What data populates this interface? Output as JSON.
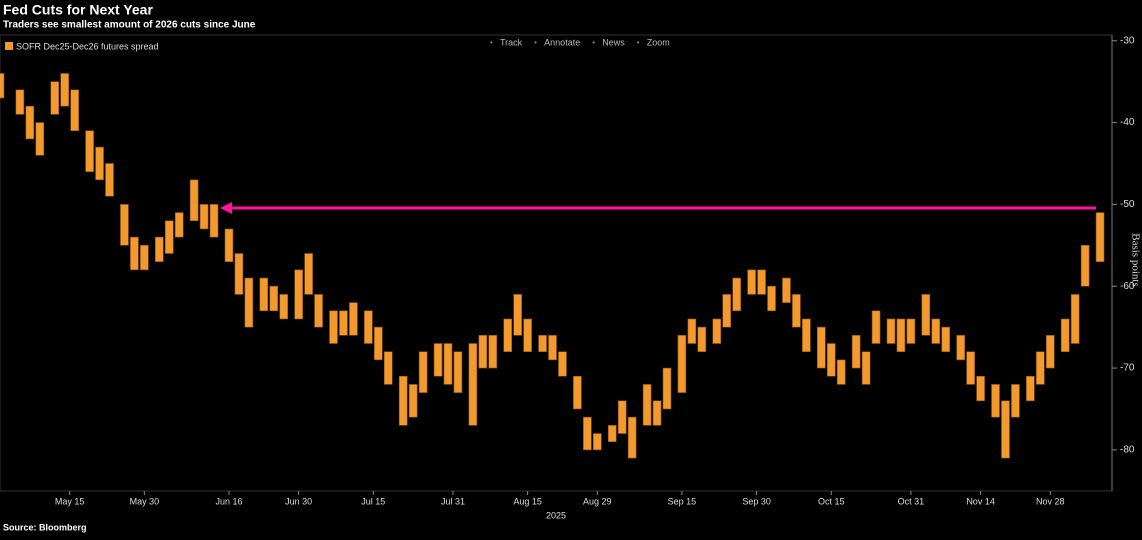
{
  "chart_data": {
    "type": "candlestick",
    "title": "Fed Cuts for Next Year",
    "subtitle": "Traders see smallest amount of 2026 cuts since June",
    "toolbar": [
      "Track",
      "Annotate",
      "News",
      "Zoom"
    ],
    "y_label": "Basis points",
    "x_label": "2025",
    "source": "Source: Bloomberg",
    "x": [
      "2025-05-01",
      "2025-05-05",
      "2025-05-07",
      "2025-05-09",
      "2025-05-12",
      "2025-05-14",
      "2025-05-16",
      "2025-05-19",
      "2025-05-21",
      "2025-05-23",
      "2025-05-26",
      "2025-05-28",
      "2025-05-30",
      "2025-06-02",
      "2025-06-04",
      "2025-06-06",
      "2025-06-09",
      "2025-06-11",
      "2025-06-13",
      "2025-06-16",
      "2025-06-18",
      "2025-06-20",
      "2025-06-23",
      "2025-06-25",
      "2025-06-27",
      "2025-06-30",
      "2025-07-02",
      "2025-07-04",
      "2025-07-07",
      "2025-07-09",
      "2025-07-11",
      "2025-07-14",
      "2025-07-16",
      "2025-07-18",
      "2025-07-21",
      "2025-07-23",
      "2025-07-25",
      "2025-07-28",
      "2025-07-30",
      "2025-08-01",
      "2025-08-04",
      "2025-08-06",
      "2025-08-08",
      "2025-08-11",
      "2025-08-13",
      "2025-08-15",
      "2025-08-18",
      "2025-08-20",
      "2025-08-22",
      "2025-08-25",
      "2025-08-27",
      "2025-08-29",
      "2025-09-01",
      "2025-09-03",
      "2025-09-05",
      "2025-09-08",
      "2025-09-10",
      "2025-09-12",
      "2025-09-15",
      "2025-09-17",
      "2025-09-19",
      "2025-09-22",
      "2025-09-24",
      "2025-09-26",
      "2025-09-29",
      "2025-10-01",
      "2025-10-03",
      "2025-10-06",
      "2025-10-08",
      "2025-10-10",
      "2025-10-13",
      "2025-10-15",
      "2025-10-17",
      "2025-10-20",
      "2025-10-22",
      "2025-10-24",
      "2025-10-27",
      "2025-10-29",
      "2025-10-31",
      "2025-11-03",
      "2025-11-05",
      "2025-11-07",
      "2025-11-10",
      "2025-11-12",
      "2025-11-14",
      "2025-11-17",
      "2025-11-19",
      "2025-11-21",
      "2025-11-24",
      "2025-11-26",
      "2025-11-28",
      "2025-12-01",
      "2025-12-03",
      "2025-12-05",
      "2025-12-08"
    ],
    "series": [
      {
        "name": "SOFR Dec25-Dec26 futures spread",
        "color": "#f39a2e",
        "open": [
          -34,
          -36,
          -38,
          -40,
          -35,
          -34,
          -36,
          -41,
          -43,
          -45,
          -50,
          -54,
          -55,
          -54,
          -52,
          -51,
          -47,
          -50,
          -50,
          -53,
          -56,
          -59,
          -59,
          -60,
          -61,
          -58,
          -56,
          -61,
          -63,
          -63,
          -62,
          -63,
          -65,
          -68,
          -71,
          -72,
          -68,
          -67,
          -67,
          -68,
          -67,
          -66,
          -66,
          -64,
          -61,
          -64,
          -66,
          -66,
          -68,
          -71,
          -76,
          -78,
          -77,
          -74,
          -76,
          -72,
          -74,
          -70,
          -66,
          -64,
          -65,
          -64,
          -61,
          -59,
          -58,
          -58,
          -60,
          -59,
          -61,
          -64,
          -65,
          -67,
          -69,
          -66,
          -68,
          -63,
          -64,
          -64,
          -64,
          -61,
          -64,
          -65,
          -66,
          -68,
          -71,
          -72,
          -74,
          -72,
          -71,
          -68,
          -66,
          -64,
          -61,
          -55,
          -51
        ],
        "close": [
          -37,
          -39,
          -42,
          -44,
          -39,
          -38,
          -41,
          -46,
          -47,
          -49,
          -55,
          -58,
          -58,
          -57,
          -56,
          -54,
          -52,
          -53,
          -54,
          -57,
          -61,
          -65,
          -63,
          -63,
          -64,
          -64,
          -61,
          -65,
          -67,
          -66,
          -66,
          -67,
          -69,
          -72,
          -77,
          -76,
          -73,
          -71,
          -72,
          -73,
          -77,
          -70,
          -70,
          -68,
          -66,
          -68,
          -68,
          -69,
          -71,
          -75,
          -80,
          -80,
          -79,
          -78,
          -81,
          -77,
          -77,
          -75,
          -73,
          -67,
          -68,
          -67,
          -65,
          -63,
          -61,
          -61,
          -63,
          -62,
          -65,
          -68,
          -70,
          -71,
          -72,
          -70,
          -72,
          -67,
          -67,
          -68,
          -67,
          -66,
          -67,
          -68,
          -69,
          -72,
          -74,
          -76,
          -81,
          -76,
          -74,
          -72,
          -70,
          -68,
          -67,
          -60,
          -57
        ]
      }
    ],
    "xlim": [
      "2025-05-01",
      "2025-12-10"
    ],
    "xticks": [
      {
        "value": "2025-05-15",
        "label": "May 15"
      },
      {
        "value": "2025-05-30",
        "label": "May 30"
      },
      {
        "value": "2025-06-16",
        "label": "Jun 16"
      },
      {
        "value": "2025-06-30",
        "label": "Jun 30"
      },
      {
        "value": "2025-07-15",
        "label": "Jul 15"
      },
      {
        "value": "2025-07-31",
        "label": "Jul 31"
      },
      {
        "value": "2025-08-15",
        "label": "Aug 15"
      },
      {
        "value": "2025-08-29",
        "label": "Aug 29"
      },
      {
        "value": "2025-09-15",
        "label": "Sep 15"
      },
      {
        "value": "2025-09-30",
        "label": "Sep 30"
      },
      {
        "value": "2025-10-15",
        "label": "Oct 15"
      },
      {
        "value": "2025-10-31",
        "label": "Oct 31"
      },
      {
        "value": "2025-11-14",
        "label": "Nov 14"
      },
      {
        "value": "2025-11-28",
        "label": "Nov 28"
      }
    ],
    "ylim": [
      -84.9,
      -29.3
    ],
    "yticks": [
      -30,
      -40,
      -50,
      -60,
      -70,
      -80
    ]
  }
}
